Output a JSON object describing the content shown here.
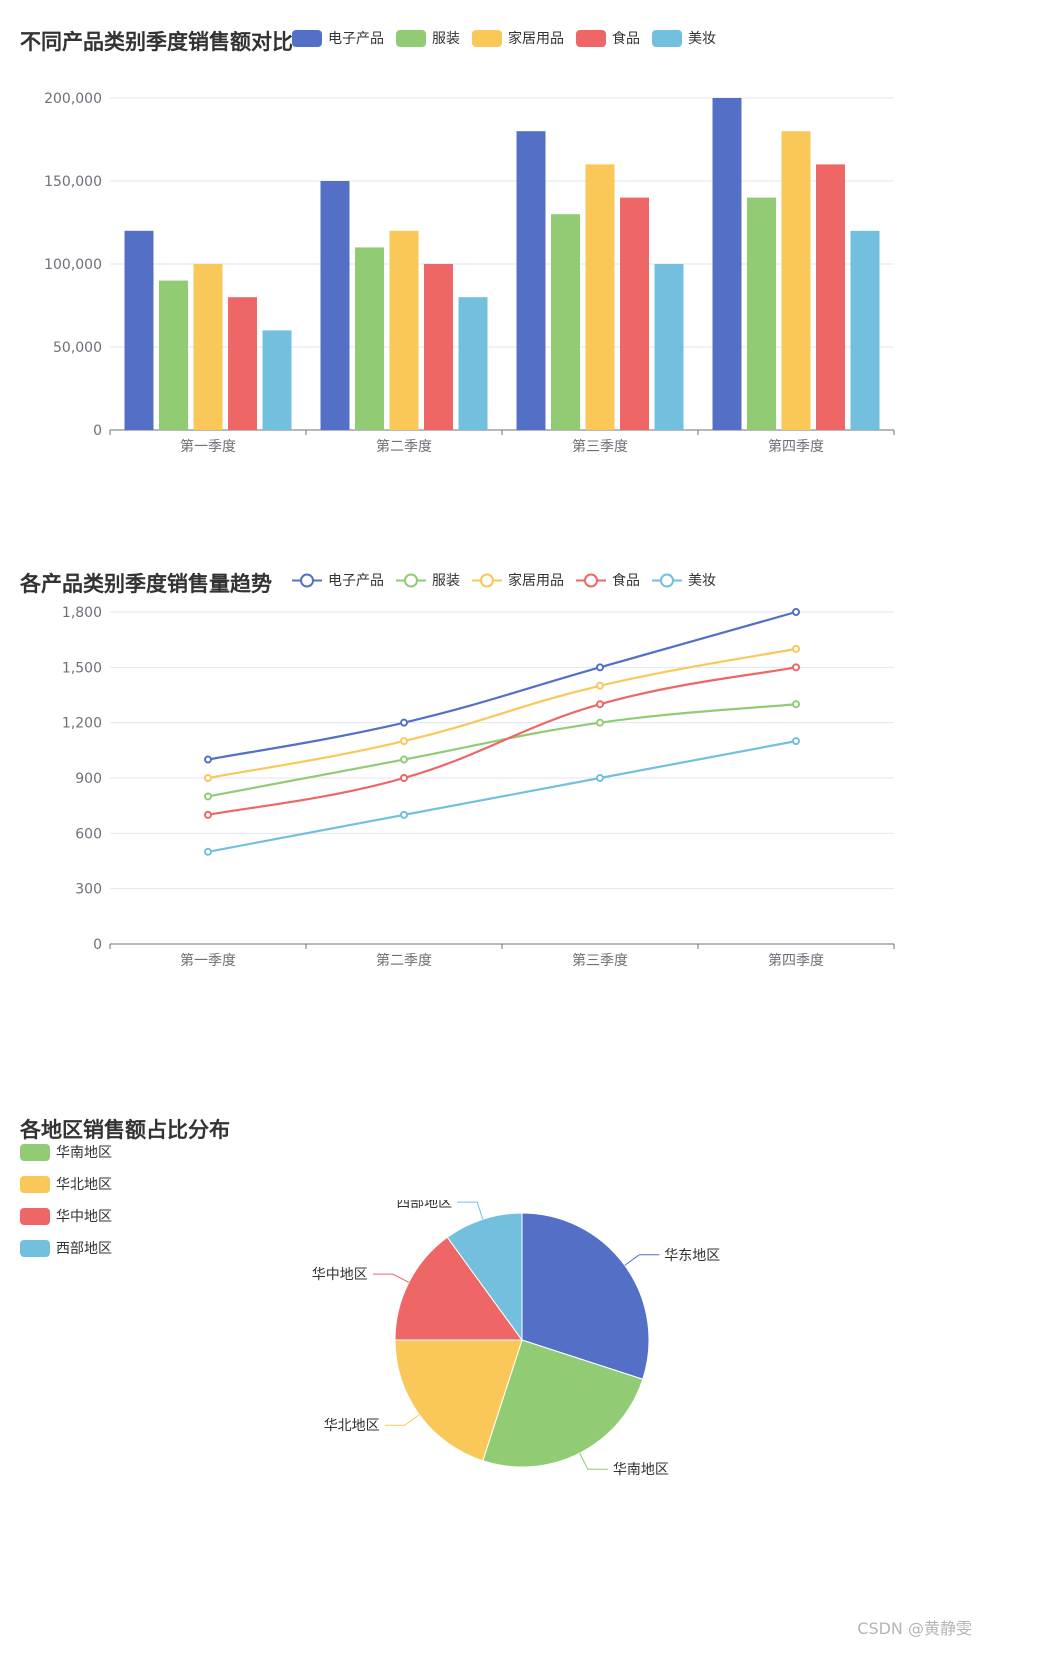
{
  "chart_data": [
    {
      "type": "bar",
      "title": "不同产品类别季度销售额对比",
      "categories": [
        "第一季度",
        "第二季度",
        "第三季度",
        "第四季度"
      ],
      "series": [
        {
          "name": "电子产品",
          "color": "#5470c6",
          "values": [
            120000,
            150000,
            180000,
            200000
          ]
        },
        {
          "name": "服装",
          "color": "#91cc75",
          "values": [
            90000,
            110000,
            130000,
            140000
          ]
        },
        {
          "name": "家居用品",
          "color": "#fac858",
          "values": [
            100000,
            120000,
            160000,
            180000
          ]
        },
        {
          "name": "食品",
          "color": "#ee6666",
          "values": [
            80000,
            100000,
            140000,
            160000
          ]
        },
        {
          "name": "美妆",
          "color": "#73c0de",
          "values": [
            60000,
            80000,
            100000,
            120000
          ]
        }
      ],
      "ylim": [
        0,
        200000
      ],
      "yticks": [
        "0",
        "50,000",
        "100,000",
        "150,000",
        "200,000"
      ],
      "grid": true,
      "legend_position": "top"
    },
    {
      "type": "line",
      "title": "各产品类别季度销售量趋势",
      "categories": [
        "第一季度",
        "第二季度",
        "第三季度",
        "第四季度"
      ],
      "series": [
        {
          "name": "电子产品",
          "color": "#5470c6",
          "values": [
            1000,
            1200,
            1500,
            1800
          ]
        },
        {
          "name": "服装",
          "color": "#91cc75",
          "values": [
            800,
            1000,
            1200,
            1300
          ]
        },
        {
          "name": "家居用品",
          "color": "#fac858",
          "values": [
            900,
            1100,
            1400,
            1600
          ]
        },
        {
          "name": "食品",
          "color": "#ee6666",
          "values": [
            700,
            900,
            1300,
            1500
          ]
        },
        {
          "name": "美妆",
          "color": "#73c0de",
          "values": [
            500,
            700,
            900,
            1100
          ]
        }
      ],
      "ylim": [
        0,
        1800
      ],
      "yticks": [
        "0",
        "300",
        "600",
        "900",
        "1,200",
        "1,500",
        "1,800"
      ],
      "smooth": true,
      "grid": true,
      "legend_position": "top"
    },
    {
      "type": "pie",
      "title": "各地区销售额占比分布",
      "slices": [
        {
          "name": "华东地区",
          "color": "#5470c6",
          "value": 30
        },
        {
          "name": "华南地区",
          "color": "#91cc75",
          "value": 25
        },
        {
          "name": "华北地区",
          "color": "#fac858",
          "value": 20
        },
        {
          "name": "华中地区",
          "color": "#ee6666",
          "value": 15
        },
        {
          "name": "西部地区",
          "color": "#73c0de",
          "value": 10
        }
      ],
      "legend_entries": [
        "华南地区",
        "华北地区",
        "华中地区",
        "西部地区"
      ],
      "legend_position": "left"
    }
  ],
  "watermark": "CSDN @黄静雯"
}
